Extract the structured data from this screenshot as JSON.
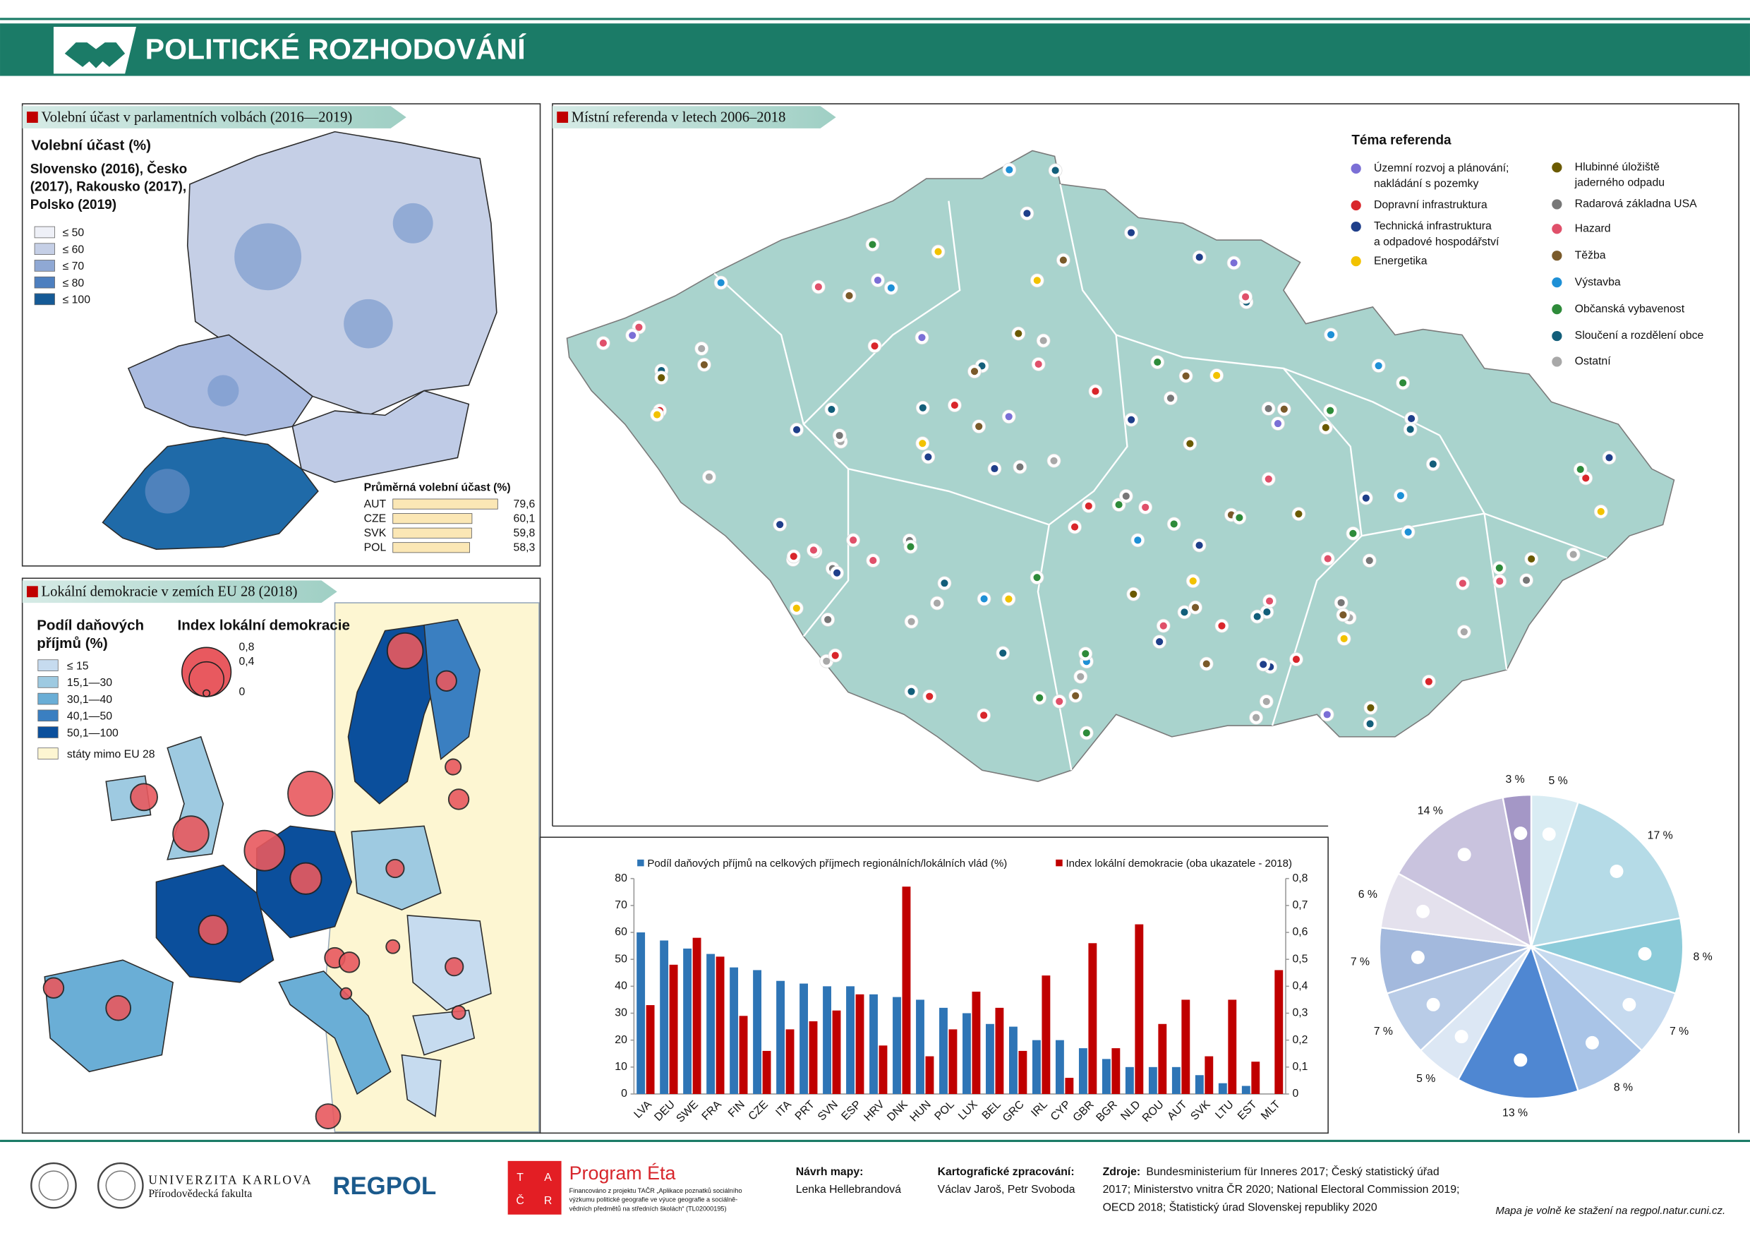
{
  "header": {
    "title": "POLITICKÉ ROZHODOVÁNÍ"
  },
  "panels": {
    "turnout": {
      "title": "Volební účast v parlamentních volbách (2016—2019)",
      "legend_title": "Volební účast (%)",
      "legend_subtitle": [
        "Slovensko (2016), Česko",
        "(2017), Rakousko (2017),",
        "Polsko (2019)"
      ],
      "legend_items": [
        "≤ 50",
        "≤ 60",
        "≤ 70",
        "≤ 80",
        "≤ 100"
      ],
      "legend_colors": [
        "#eef0f7",
        "#c5cfe6",
        "#8fa8d4",
        "#4d7fbf",
        "#155a96"
      ]
    },
    "referenda": {
      "title": "Místní referenda v letech 2006–2018",
      "legend_title": "Téma referenda",
      "legend_items": [
        {
          "label": [
            "Územní rozvoj a plánování;",
            "nakládání s pozemky"
          ],
          "color": "#7b6fd6"
        },
        {
          "label": [
            "Dopravní infrastruktura"
          ],
          "color": "#d9262b"
        },
        {
          "label": [
            "Technická infrastruktura",
            "a odpadové hospodářství"
          ],
          "color": "#1f3f8a"
        },
        {
          "label": [
            "Energetika"
          ],
          "color": "#f2c200"
        },
        {
          "label": [
            "Hlubinné úložiště",
            "jaderného odpadu"
          ],
          "color": "#6b5a00"
        },
        {
          "label": [
            "Radarová základna USA"
          ],
          "color": "#777777"
        },
        {
          "label": [
            "Hazard"
          ],
          "color": "#e0506a"
        },
        {
          "label": [
            "Těžba"
          ],
          "color": "#7a5a2a"
        },
        {
          "label": [
            "Výstavba"
          ],
          "color": "#1e90d6"
        },
        {
          "label": [
            "Občanská vybavenost"
          ],
          "color": "#2e8b3a"
        },
        {
          "label": [
            "Sloučení a rozdělení obce"
          ],
          "color": "#135e7a"
        },
        {
          "label": [
            "Ostatní"
          ],
          "color": "#a8a8a8"
        }
      ]
    },
    "local_democracy": {
      "title": "Lokální demokracie v zemích EU 28 (2018)",
      "tax_legend_title": [
        "Podíl daňových",
        "příjmů (%)"
      ],
      "tax_items": [
        "≤ 15",
        "15,1—30",
        "30,1—40",
        "40,1—50",
        "50,1—100"
      ],
      "tax_colors": [
        "#c6dbef",
        "#9ecae1",
        "#6aaed6",
        "#3a7fc1",
        "#0b4f9c"
      ],
      "non_eu": "státy mimo EU 28",
      "non_eu_color": "#fdf6d2",
      "index_title": "Index lokální demokracie",
      "index_sizes": [
        {
          "value": 0.8,
          "label": "0,8"
        },
        {
          "value": 0.4,
          "label": "0,4"
        },
        0
      ]
    }
  },
  "chart_data": [
    {
      "type": "bar",
      "orientation": "horizontal",
      "title": "Průměrná volební účast (%)",
      "categories": [
        "AUT",
        "CZE",
        "SVK",
        "POL"
      ],
      "values": [
        79.6,
        60.1,
        59.8,
        58.3
      ],
      "value_labels": [
        "79,6",
        "60,1",
        "59,8",
        "58,3"
      ],
      "color": "#fbe7b5"
    },
    {
      "type": "bar",
      "categories": [
        "LVA",
        "DEU",
        "SWE",
        "FRA",
        "FIN",
        "CZE",
        "ITA",
        "PRT",
        "SVN",
        "ESP",
        "HRV",
        "DNK",
        "HUN",
        "POL",
        "LUX",
        "BEL",
        "GRC",
        "IRL",
        "CYP",
        "GBR",
        "BGR",
        "NLD",
        "ROU",
        "AUT",
        "SVK",
        "LTU",
        "EST",
        "MLT"
      ],
      "series": [
        {
          "name": "Podíl daňových příjmů na celkových příjmech regionálních/lokálních vlád (%)",
          "color": "#2e75b6",
          "values": [
            60,
            57,
            54,
            52,
            47,
            46,
            42,
            41,
            40,
            40,
            37,
            36,
            35,
            32,
            30,
            26,
            25,
            20,
            20,
            17,
            13,
            10,
            10,
            10,
            7,
            4,
            3,
            0
          ]
        },
        {
          "name": "Index lokální demokracie (oba ukazatele - 2018)",
          "color": "#c00000",
          "axis": "y2",
          "values": [
            0.33,
            0.48,
            0.58,
            0.51,
            0.29,
            0.16,
            0.24,
            0.27,
            0.31,
            0.37,
            0.18,
            0.77,
            0.14,
            0.24,
            0.38,
            0.32,
            0.16,
            0.44,
            0.06,
            0.56,
            0.17,
            0.63,
            0.26,
            0.35,
            0.14,
            0.35,
            0.12,
            0.46
          ]
        }
      ],
      "ylim": [
        0,
        80
      ],
      "yticks": [
        0,
        10,
        20,
        30,
        40,
        50,
        60,
        70,
        80
      ],
      "y2lim": [
        0,
        0.8
      ],
      "y2ticks": [
        0,
        {
          "value": 0.1,
          "label": "0,1"
        },
        {
          "value": 0.2,
          "label": "0,2"
        },
        {
          "value": 0.3,
          "label": "0,3"
        },
        {
          "value": 0.4,
          "label": "0,4"
        },
        {
          "value": 0.5,
          "label": "0,5"
        },
        {
          "value": 0.6,
          "label": "0,6"
        },
        {
          "value": 0.7,
          "label": "0,7"
        },
        {
          "value": 0.8,
          "label": "0,8"
        }
      ]
    },
    {
      "type": "pie",
      "values": [
        5,
        17,
        8,
        7,
        8,
        13,
        5,
        7,
        7,
        6,
        14,
        3
      ],
      "value_labels": [
        "5 %",
        "17 %",
        "8 %",
        "7 %",
        "8 %",
        "13 %",
        "5 %",
        "7 %",
        "7 %",
        "6 %",
        "14 %",
        "3 %"
      ],
      "colors": [
        "#d9ecf3",
        "#b5dbe7",
        "#8ccbd9",
        "#c6daef",
        "#a9c4e7",
        "#4f87d2",
        "#dce7f4",
        "#b9cce7",
        "#a3b9dd",
        "#e4e1ed",
        "#c9c3de",
        "#a497c6"
      ]
    }
  ],
  "footer": {
    "university": "UNIVERZITA KARLOVA",
    "faculty": "Přírodovědecká fakulta",
    "regpol": "REGPOL",
    "tacr": [
      "T",
      "A",
      "Č",
      "R"
    ],
    "program": "Program Éta",
    "funding": [
      "Financováno z projektu TAČR „Aplikace poznatků sociálního",
      "výzkumu politické geografie ve výuce geografie a sociálně-",
      "vědních předmětů na středních školách“ (TL02000195)"
    ],
    "design_label": "Návrh mapy:",
    "design": "Lenka Hellebrandová",
    "carto_label": "Kartografické zpracování:",
    "carto": "Václav Jaroš, Petr Svoboda",
    "sources_label": "Zdroje:",
    "sources": [
      "Bundesministerium für Inneres 2017; Český statistický úřad",
      "2017; Ministerstvo vnitra ČR 2020; National Electoral Commission 2019;",
      "OECD 2018; Štatistický úrad Slovenskej republiky 2020"
    ],
    "download": "Mapa je volně ke stažení na regpol.natur.cuni.cz."
  }
}
